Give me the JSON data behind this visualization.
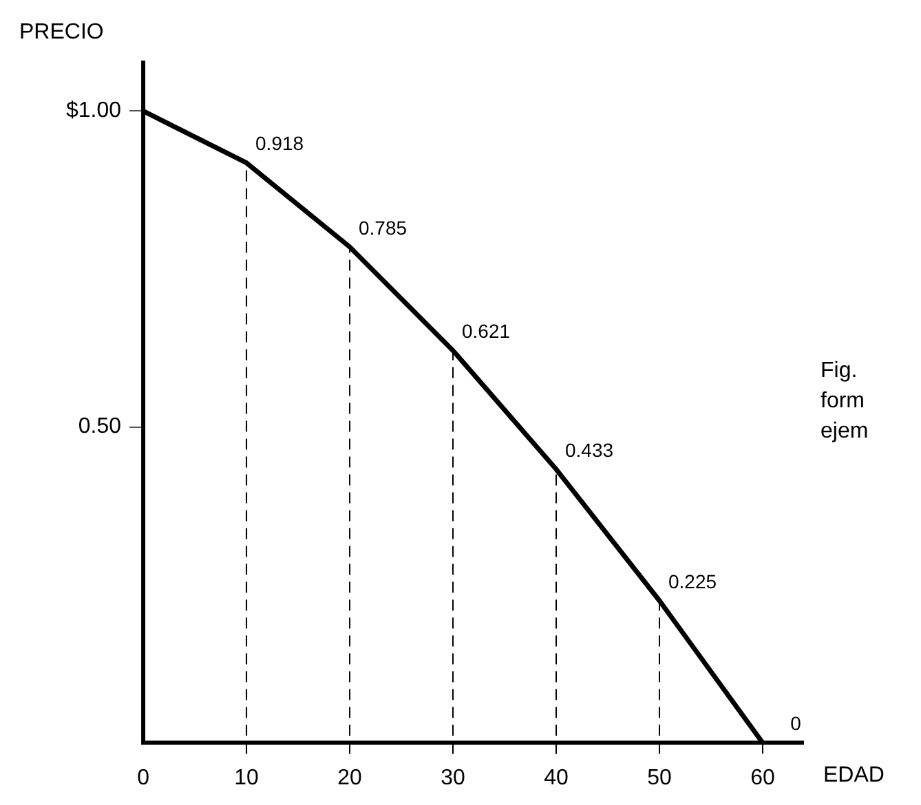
{
  "chart_data": {
    "type": "line",
    "xlabel": "EDAD",
    "ylabel": "PRECIO",
    "x": [
      0,
      10,
      20,
      30,
      40,
      50,
      60
    ],
    "series": [
      {
        "color": "#000000",
        "values": [
          1.0,
          0.918,
          0.785,
          0.621,
          0.433,
          0.225,
          0
        ],
        "value_labels": [
          null,
          "0.918",
          "0.785",
          "0.621",
          "0.433",
          "0.225",
          "0"
        ]
      }
    ],
    "xlim": [
      0,
      64
    ],
    "xticks": [
      0,
      10,
      20,
      30,
      40,
      50,
      60
    ],
    "ylim": [
      0,
      1.08
    ],
    "yticks": [
      {
        "value": 0.5,
        "label": "0.50"
      },
      {
        "value": 1,
        "label": "$1.00"
      }
    ],
    "ref_lines": [
      {
        "axis": "x",
        "value": 10,
        "line_style": "dashed"
      },
      {
        "axis": "x",
        "value": 20,
        "line_style": "dashed"
      },
      {
        "axis": "x",
        "value": 30,
        "line_style": "dashed"
      },
      {
        "axis": "x",
        "value": 40,
        "line_style": "dashed"
      },
      {
        "axis": "x",
        "value": 50,
        "line_style": "dashed"
      }
    ],
    "annotations": [
      "Fig.",
      "form",
      "ejem"
    ],
    "grid": false,
    "legend": false,
    "marker": "none",
    "line_style": "solid"
  }
}
